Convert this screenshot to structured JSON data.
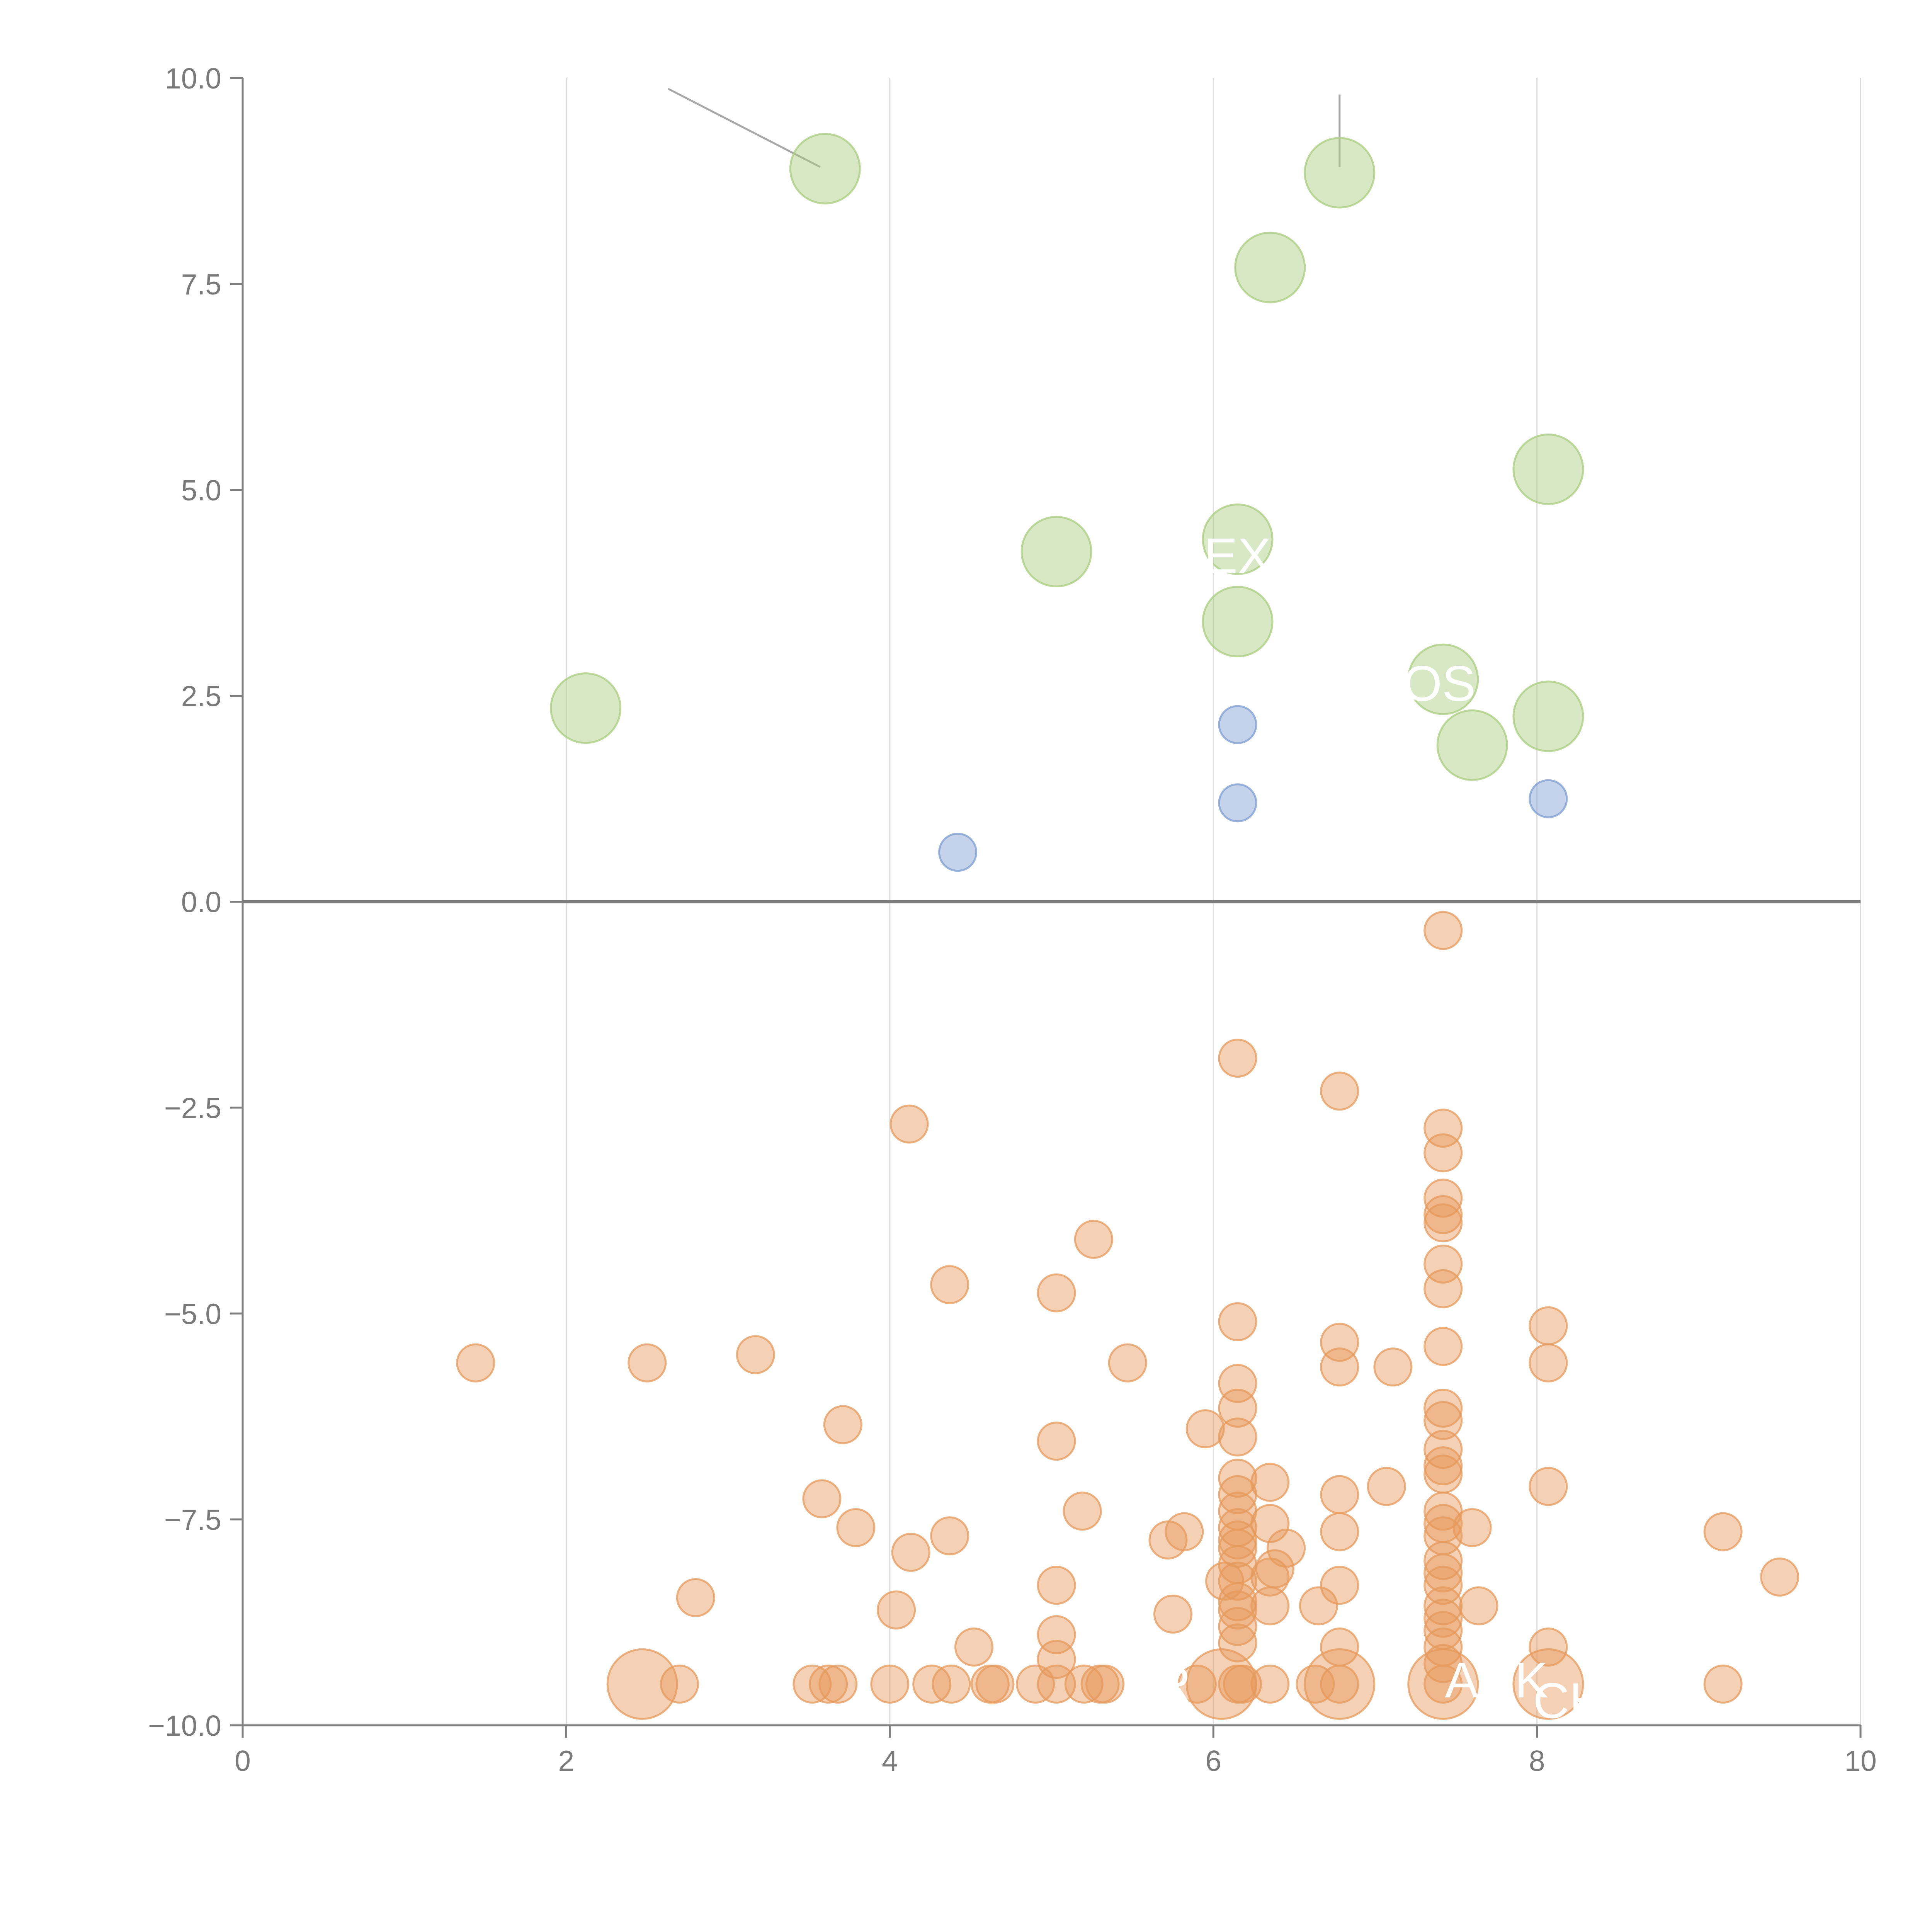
{
  "colors": {
    "axis": "#7f7f7f",
    "grid": "#dcdcdc",
    "zero_line": "#7f7f7f",
    "green": "#a9cc7e",
    "blue": "#7c9cd0",
    "orange": "#e69a5c",
    "label_text": "#ffffff",
    "leader_dark": "#a8a8a8",
    "leader_light": "#ffffff"
  },
  "chart_data": {
    "type": "scatter",
    "title": "",
    "xlabel": "",
    "ylabel": "",
    "xlim": [
      0,
      10
    ],
    "ylim": [
      -10,
      10
    ],
    "x_ticks": [
      0,
      2,
      4,
      6,
      8,
      10
    ],
    "x_tick_labels": [
      "0",
      "2",
      "4",
      "6",
      "8",
      "10"
    ],
    "y_ticks": [
      10,
      7.5,
      5,
      2.5,
      0,
      -2.5,
      -5,
      -7.5,
      -10
    ],
    "y_tick_labels": [
      "10.0",
      "7.5",
      "5.0",
      "2.5",
      "0.0",
      "−2.5",
      "−5.0",
      "−7.5",
      "−10.0"
    ],
    "grid": "vertical",
    "zero_line": true,
    "series": [
      {
        "name": "green",
        "color": "green",
        "size": "large",
        "points": [
          [
            3.6,
            8.9
          ],
          [
            6.78,
            8.85
          ],
          [
            6.35,
            7.7
          ],
          [
            8.07,
            5.25
          ],
          [
            5.03,
            4.25
          ],
          [
            6.15,
            4.4
          ],
          [
            6.15,
            3.4
          ],
          [
            2.12,
            2.35
          ],
          [
            7.42,
            2.7
          ],
          [
            7.6,
            1.9
          ],
          [
            8.07,
            2.25
          ]
        ]
      },
      {
        "name": "blue",
        "color": "blue",
        "size": "small",
        "points": [
          [
            4.42,
            0.6
          ],
          [
            6.15,
            2.15
          ],
          [
            6.15,
            1.2
          ],
          [
            8.07,
            1.25
          ]
        ]
      },
      {
        "name": "orange",
        "color": "orange",
        "size": "small",
        "points": [
          [
            1.44,
            -5.6
          ],
          [
            2.5,
            -5.6
          ],
          [
            3.17,
            -5.5
          ],
          [
            3.71,
            -6.35
          ],
          [
            3.58,
            -7.25
          ],
          [
            3.79,
            -7.6
          ],
          [
            4.12,
            -2.7
          ],
          [
            4.13,
            -7.9
          ],
          [
            4.37,
            -4.65
          ],
          [
            4.37,
            -7.7
          ],
          [
            4.04,
            -8.6
          ],
          [
            4.52,
            -9.05
          ],
          [
            2.8,
            -8.45
          ],
          [
            5.03,
            -4.75
          ],
          [
            5.03,
            -6.55
          ],
          [
            5.03,
            -8.3
          ],
          [
            5.03,
            -8.9
          ],
          [
            5.03,
            -9.2
          ],
          [
            5.26,
            -4.1
          ],
          [
            5.19,
            -7.4
          ],
          [
            5.47,
            -5.6
          ],
          [
            5.95,
            -6.4
          ],
          [
            5.72,
            -7.75
          ],
          [
            5.82,
            -7.65
          ],
          [
            5.75,
            -8.65
          ],
          [
            6.15,
            -1.9
          ],
          [
            6.15,
            -5.1
          ],
          [
            6.15,
            -5.85
          ],
          [
            6.15,
            -6.15
          ],
          [
            6.15,
            -6.5
          ],
          [
            6.15,
            -7.0
          ],
          [
            6.15,
            -7.2
          ],
          [
            6.15,
            -7.4
          ],
          [
            6.15,
            -7.6
          ],
          [
            6.15,
            -7.75
          ],
          [
            6.15,
            -7.85
          ],
          [
            6.15,
            -8.05
          ],
          [
            6.15,
            -8.25
          ],
          [
            6.15,
            -8.5
          ],
          [
            6.15,
            -8.6
          ],
          [
            6.15,
            -8.8
          ],
          [
            6.15,
            -9.0
          ],
          [
            6.07,
            -8.25
          ],
          [
            6.35,
            -7.05
          ],
          [
            6.35,
            -7.55
          ],
          [
            6.35,
            -8.2
          ],
          [
            6.35,
            -8.55
          ],
          [
            6.38,
            -8.1
          ],
          [
            6.45,
            -7.85
          ],
          [
            6.65,
            -8.55
          ],
          [
            6.78,
            -2.3
          ],
          [
            6.78,
            -5.35
          ],
          [
            6.78,
            -5.65
          ],
          [
            6.78,
            -7.2
          ],
          [
            6.78,
            -7.65
          ],
          [
            6.78,
            -8.3
          ],
          [
            6.78,
            -9.05
          ],
          [
            7.11,
            -5.65
          ],
          [
            7.07,
            -7.1
          ],
          [
            7.42,
            -0.35
          ],
          [
            7.42,
            -2.75
          ],
          [
            7.42,
            -3.05
          ],
          [
            7.42,
            -3.6
          ],
          [
            7.42,
            -3.8
          ],
          [
            7.42,
            -3.9
          ],
          [
            7.42,
            -4.4
          ],
          [
            7.42,
            -4.7
          ],
          [
            7.42,
            -5.4
          ],
          [
            7.42,
            -6.15
          ],
          [
            7.42,
            -6.3
          ],
          [
            7.42,
            -6.65
          ],
          [
            7.42,
            -6.85
          ],
          [
            7.42,
            -6.95
          ],
          [
            7.42,
            -7.4
          ],
          [
            7.42,
            -7.55
          ],
          [
            7.42,
            -7.7
          ],
          [
            7.42,
            -8.0
          ],
          [
            7.42,
            -8.15
          ],
          [
            7.42,
            -8.3
          ],
          [
            7.42,
            -8.55
          ],
          [
            7.42,
            -8.7
          ],
          [
            7.42,
            -8.85
          ],
          [
            7.42,
            -9.05
          ],
          [
            7.42,
            -9.25
          ],
          [
            7.6,
            -7.6
          ],
          [
            7.64,
            -8.55
          ],
          [
            8.07,
            -5.15
          ],
          [
            8.07,
            -5.6
          ],
          [
            8.07,
            -7.1
          ],
          [
            8.07,
            -9.05
          ],
          [
            9.15,
            -7.65
          ],
          [
            9.5,
            -8.2
          ],
          [
            2.7,
            -9.5
          ],
          [
            3.52,
            -9.5
          ],
          [
            3.62,
            -9.5
          ],
          [
            3.68,
            -9.5
          ],
          [
            4.0,
            -9.5
          ],
          [
            4.26,
            -9.5
          ],
          [
            4.38,
            -9.5
          ],
          [
            4.62,
            -9.5
          ],
          [
            4.65,
            -9.5
          ],
          [
            4.9,
            -9.5
          ],
          [
            5.03,
            -9.5
          ],
          [
            5.2,
            -9.5
          ],
          [
            5.3,
            -9.5
          ],
          [
            5.33,
            -9.5
          ],
          [
            5.9,
            -9.5
          ],
          [
            6.15,
            -9.5
          ],
          [
            6.18,
            -9.5
          ],
          [
            6.35,
            -9.5
          ],
          [
            6.63,
            -9.5
          ],
          [
            6.78,
            -9.5
          ],
          [
            7.42,
            -9.5
          ],
          [
            9.15,
            -9.5
          ]
        ]
      },
      {
        "name": "orange-large",
        "color": "orange",
        "size": "large",
        "points": [
          [
            2.47,
            -9.5
          ],
          [
            6.05,
            -9.5
          ],
          [
            6.78,
            -9.5
          ],
          [
            7.42,
            -9.5
          ],
          [
            8.07,
            -9.5
          ]
        ]
      }
    ],
    "annotations": [
      {
        "text": "R",
        "x": 5.75,
        "y": -9.5
      },
      {
        "text": "EX",
        "x": 6.15,
        "y": 4.2
      },
      {
        "text": "OSE",
        "x": 7.5,
        "y": 2.65
      },
      {
        "text": "ARK",
        "x": 7.75,
        "y": -9.45
      },
      {
        "text": "CH",
        "x": 8.2,
        "y": -9.7
      }
    ]
  }
}
